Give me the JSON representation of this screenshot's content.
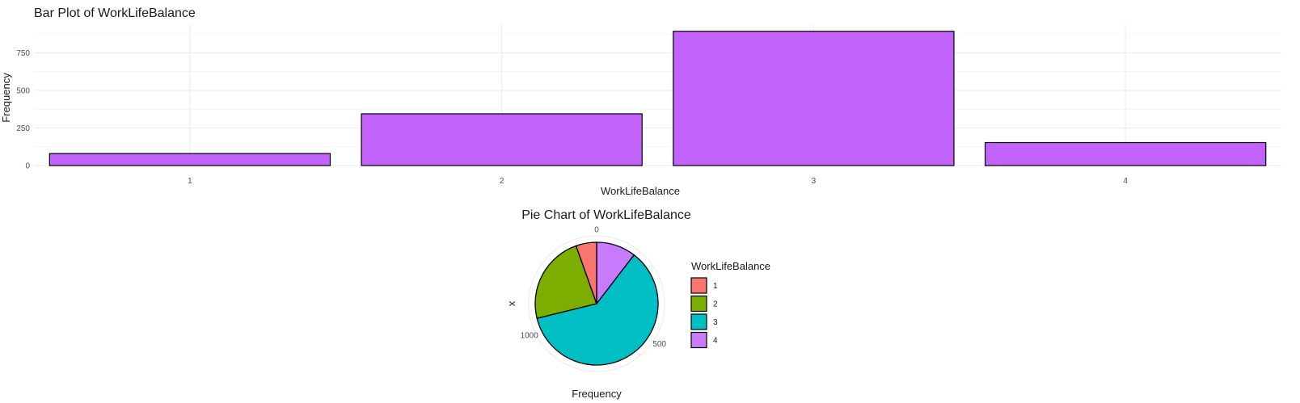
{
  "chart_data": [
    {
      "type": "bar",
      "title": "Bar Plot of WorkLifeBalance",
      "xlabel": "WorkLifeBalance",
      "ylabel": "Frequency",
      "categories": [
        "1",
        "2",
        "3",
        "4"
      ],
      "values": [
        80,
        344,
        893,
        153
      ],
      "yticks": [
        "0",
        "250",
        "500",
        "750"
      ],
      "ylim": [
        0,
        940
      ],
      "grid": true,
      "bar_color": "#C162F8",
      "bar_border": "#000000"
    },
    {
      "type": "pie",
      "title": "Pie Chart of WorkLifeBalance",
      "xlabel": "Frequency",
      "ylabel": "x",
      "categories": [
        "1",
        "2",
        "3",
        "4"
      ],
      "values": [
        80,
        344,
        893,
        153
      ],
      "colors": [
        "#F8766D",
        "#7CAE00",
        "#00BFC4",
        "#C77CFF"
      ],
      "theta_ticks": [
        "0",
        "500",
        "1000"
      ],
      "legend_title": "WorkLifeBalance",
      "legend_position": "right"
    }
  ]
}
